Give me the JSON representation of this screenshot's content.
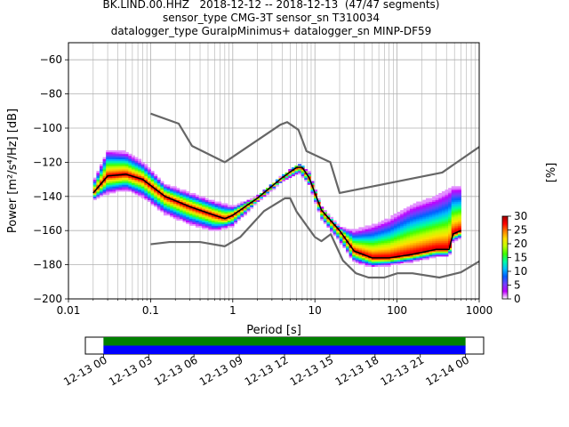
{
  "header": {
    "title_lines": [
      "BK.LIND.00.HHZ   2018-12-12 -- 2018-12-13  (47/47 segments)",
      "sensor_type CMG-3T sensor_sn T310034",
      "datalogger_type GuralpMinimus+ datalogger_sn MINP-DF59"
    ]
  },
  "chart_data": [
    {
      "type": "heatmap",
      "subtype": "probabilistic-power-spectral-density",
      "xlabel": "Period [s]",
      "ylabel": "Power [m²/s⁴/Hz] [dB]",
      "x_scale": "log",
      "xlim": [
        0.01,
        1000
      ],
      "ylim": [
        -200,
        -50
      ],
      "x_ticks": [
        0.01,
        0.1,
        1,
        10,
        100,
        1000
      ],
      "x_tick_labels": [
        "0.01",
        "0.1",
        "1",
        "10",
        "100",
        "1000"
      ],
      "y_ticks": [
        -200,
        -180,
        -160,
        -140,
        -120,
        -100,
        -80,
        -60
      ],
      "y_tick_labels": [
        "−200",
        "−180",
        "−160",
        "−140",
        "−120",
        "−100",
        "−80",
        "−60"
      ],
      "grid": true,
      "colorbar": {
        "label": "[%]",
        "ticks": [
          0,
          5,
          10,
          15,
          20,
          25,
          30
        ],
        "tick_labels": [
          "0",
          "5",
          "10",
          "15",
          "20",
          "25",
          "30"
        ],
        "range": [
          0,
          30
        ],
        "colormap": [
          "#ffffff",
          "#c000ff",
          "#7040ff",
          "#0060ff",
          "#00c0ff",
          "#00ffa0",
          "#40ff00",
          "#c0ff00",
          "#ffe000",
          "#ff8000",
          "#ff0000",
          "#a00000"
        ]
      },
      "series": [
        {
          "name": "",
          "role": "new-high-noise-model",
          "color": "#666666",
          "x": [
            0.1,
            0.22,
            0.32,
            0.8,
            3.8,
            4.6,
            6.3,
            7.9,
            15.4,
            20,
            354.8,
            1000
          ],
          "y": [
            -91.5,
            -97.4,
            -110.5,
            -120,
            -98,
            -96.5,
            -101,
            -113.5,
            -120,
            -138,
            -126,
            -111
          ]
        },
        {
          "name": "",
          "role": "new-low-noise-model",
          "color": "#666666",
          "x": [
            0.1,
            0.17,
            0.4,
            0.8,
            1.24,
            2.4,
            4.3,
            5,
            6,
            10,
            12,
            15.6,
            21.9,
            31.6,
            45,
            70,
            101,
            154,
            328,
            600,
            1000
          ],
          "y": [
            -168,
            -166.7,
            -166.7,
            -169.2,
            -163.7,
            -148.6,
            -141.1,
            -141.1,
            -149,
            -163.8,
            -166.2,
            -162.1,
            -177.5,
            -185,
            -187.5,
            -187.5,
            -185,
            -185,
            -187.5,
            -184.4,
            -178
          ]
        },
        {
          "name": "",
          "role": "mode-psd",
          "color": "#000000",
          "x": [
            0.02,
            0.03,
            0.05,
            0.08,
            0.15,
            0.3,
            0.6,
            0.8,
            1.0,
            2.0,
            4.0,
            6.0,
            7.0,
            8.5,
            12,
            20,
            30,
            50,
            80,
            150,
            300,
            430,
            480,
            600
          ],
          "y": [
            -138,
            -128,
            -127,
            -130,
            -140,
            -146,
            -151,
            -153,
            -151,
            -141,
            -129,
            -123,
            -123,
            -129,
            -148,
            -160,
            -172,
            -176,
            -176,
            -174,
            -171,
            -171,
            -162,
            -160
          ]
        },
        {
          "name": "",
          "role": "psd-density-upper-envelope",
          "x": [
            0.02,
            0.03,
            0.05,
            0.08,
            0.15,
            0.3,
            0.6,
            1.0,
            2.0,
            4.0,
            6.5,
            8.5,
            12,
            20,
            30,
            50,
            80,
            150,
            300,
            430,
            480,
            600
          ],
          "y": [
            -132,
            -113,
            -114,
            -120,
            -133,
            -138,
            -143,
            -146,
            -140,
            -128,
            -121,
            -126,
            -146,
            -158,
            -160,
            -157,
            -153,
            -145,
            -140,
            -136,
            -134,
            -134
          ]
        },
        {
          "name": "",
          "role": "psd-density-lower-envelope",
          "x": [
            0.02,
            0.03,
            0.05,
            0.08,
            0.15,
            0.3,
            0.6,
            1.0,
            2.0,
            4.0,
            6.5,
            8.5,
            12,
            20,
            30,
            50,
            80,
            150,
            300,
            430,
            480,
            600
          ],
          "y": [
            -142,
            -138,
            -136,
            -140,
            -150,
            -156,
            -160,
            -157,
            -143,
            -131,
            -126,
            -133,
            -153,
            -166,
            -178,
            -181,
            -180,
            -178,
            -175,
            -175,
            -166,
            -164
          ]
        }
      ]
    },
    {
      "type": "bar",
      "subtype": "data-coverage-timeline",
      "x_tick_labels": [
        "12-13 00",
        "12-13 03",
        "12-13 06",
        "12-13 09",
        "12-13 12",
        "12-13 15",
        "12-13 18",
        "12-13 21",
        "12-14 00"
      ],
      "x_ticks_hours": [
        0,
        3,
        6,
        9,
        12,
        15,
        18,
        21,
        24
      ],
      "xlim_hours": [
        -1.2,
        25.2
      ],
      "series": [
        {
          "name": "",
          "color": "#008000",
          "start_hours": 0,
          "end_hours": 24,
          "row": "upper"
        },
        {
          "name": "",
          "color": "#0000ff",
          "start_hours": 0,
          "end_hours": 24,
          "row": "lower"
        }
      ]
    }
  ]
}
